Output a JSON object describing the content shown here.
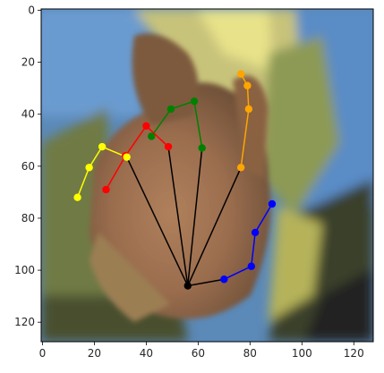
{
  "x_ticks": [
    "0",
    "20",
    "40",
    "60",
    "80",
    "100",
    "120"
  ],
  "y_ticks": [
    "0",
    "20",
    "40",
    "60",
    "80",
    "100",
    "120"
  ],
  "colors": {
    "root": "#000000",
    "thumb": "#0000ff",
    "index": "#ffa500",
    "middle": "#008000",
    "ring": "#ff0000",
    "pinky": "#ffff00"
  },
  "keypoints": {
    "wrist": [
      56,
      106
    ],
    "thumb": [
      [
        70,
        103.5
      ],
      [
        80.5,
        98.5
      ],
      [
        82,
        85.5
      ],
      [
        88.5,
        74.5
      ]
    ],
    "index": [
      [
        76.5,
        60.5
      ],
      [
        79.5,
        38
      ],
      [
        79,
        29
      ],
      [
        76.5,
        24.5
      ]
    ],
    "middle": [
      [
        61.5,
        53
      ],
      [
        58.5,
        35
      ],
      [
        49.5,
        38
      ],
      [
        42,
        48.5
      ]
    ],
    "ring": [
      [
        48.5,
        52.5
      ],
      [
        40,
        44.5
      ],
      [
        32,
        56
      ],
      [
        24.5,
        69
      ]
    ],
    "pinky": [
      [
        32.5,
        56.5
      ],
      [
        23,
        52.5
      ],
      [
        18,
        60.5
      ],
      [
        13.5,
        72
      ]
    ]
  }
}
